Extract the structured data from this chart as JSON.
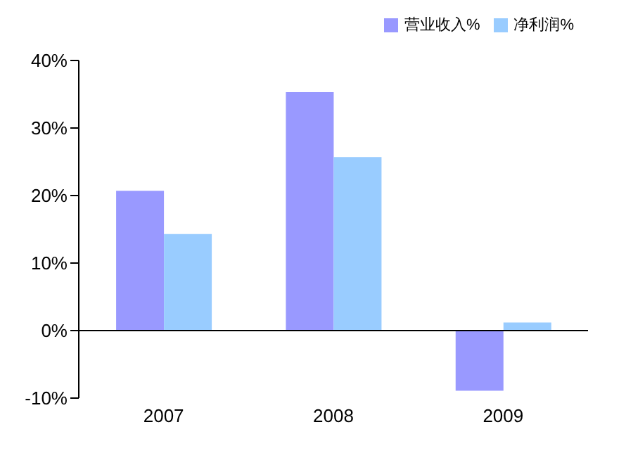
{
  "chart_data": {
    "type": "bar",
    "categories": [
      "2007",
      "2008",
      "2009"
    ],
    "series": [
      {
        "name": "营业收入%",
        "color": "#9999ff",
        "values": [
          20.7,
          35.3,
          -8.9
        ]
      },
      {
        "name": "净利润%",
        "color": "#99ccff",
        "values": [
          14.3,
          25.7,
          1.2
        ]
      }
    ],
    "ylim": [
      -10,
      40
    ],
    "yticks": [
      {
        "value": -10,
        "label": "-10%"
      },
      {
        "value": 0,
        "label": "0%"
      },
      {
        "value": 10,
        "label": "10%"
      },
      {
        "value": 20,
        "label": "20%"
      },
      {
        "value": 30,
        "label": "30%"
      },
      {
        "value": 40,
        "label": "40%"
      }
    ],
    "legend": "top right"
  }
}
